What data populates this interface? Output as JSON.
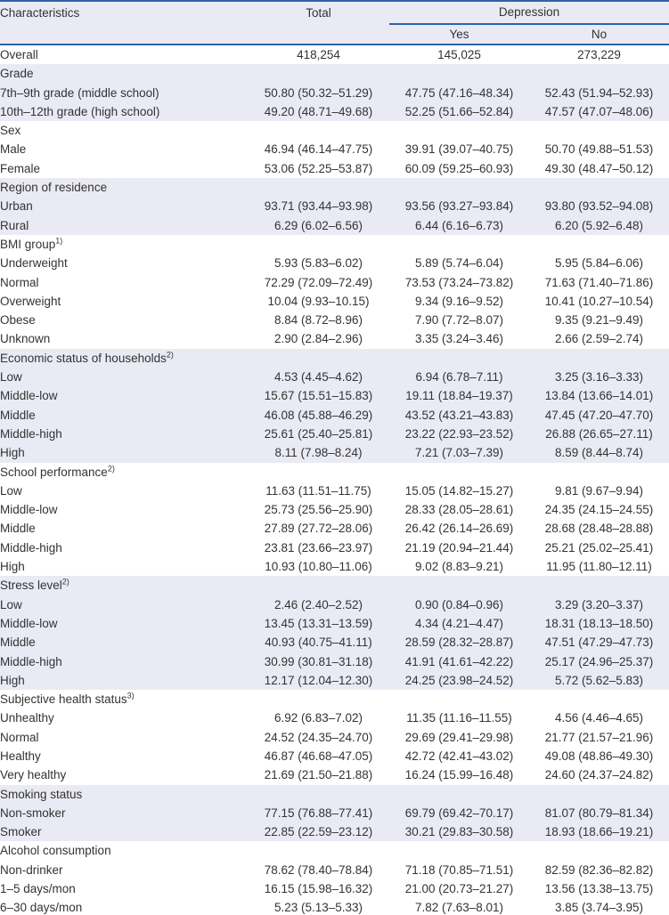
{
  "colors": {
    "rule_blue": "#2c64a7",
    "section_shade": "#e9eaf4",
    "text": "#333333"
  },
  "header": {
    "characteristics": "Characteristics",
    "total": "Total",
    "depression": "Depression",
    "yes": "Yes",
    "no": "No"
  },
  "sections": [
    {
      "label": "Overall",
      "sup": "",
      "values": {
        "total": "418,254",
        "yes": "145,025",
        "no": "273,229"
      },
      "rows": []
    },
    {
      "label": "Grade",
      "sup": "",
      "values": null,
      "rows": [
        {
          "label": "7th–9th grade (middle school)",
          "total": "50.80 (50.32–51.29)",
          "yes": "47.75 (47.16–48.34)",
          "no": "52.43 (51.94–52.93)"
        },
        {
          "label": "10th–12th grade (high school)",
          "total": "49.20 (48.71–49.68)",
          "yes": "52.25 (51.66–52.84)",
          "no": "47.57 (47.07–48.06)"
        }
      ]
    },
    {
      "label": "Sex",
      "sup": "",
      "values": null,
      "rows": [
        {
          "label": "Male",
          "total": "46.94 (46.14–47.75)",
          "yes": "39.91 (39.07–40.75)",
          "no": "50.70 (49.88–51.53)"
        },
        {
          "label": "Female",
          "total": "53.06 (52.25–53.87)",
          "yes": "60.09 (59.25–60.93)",
          "no": "49.30 (48.47–50.12)"
        }
      ]
    },
    {
      "label": "Region of residence",
      "sup": "",
      "values": null,
      "rows": [
        {
          "label": "Urban",
          "total": "93.71 (93.44–93.98)",
          "yes": "93.56 (93.27–93.84)",
          "no": "93.80 (93.52–94.08)"
        },
        {
          "label": "Rural",
          "total": "6.29 (6.02–6.56)",
          "yes": "6.44 (6.16–6.73)",
          "no": "6.20 (5.92–6.48)"
        }
      ]
    },
    {
      "label": "BMI group",
      "sup": "1)",
      "values": null,
      "rows": [
        {
          "label": "Underweight",
          "total": "5.93 (5.83–6.02)",
          "yes": "5.89 (5.74–6.04)",
          "no": "5.95 (5.84–6.06)"
        },
        {
          "label": "Normal",
          "total": "72.29 (72.09–72.49)",
          "yes": "73.53 (73.24–73.82)",
          "no": "71.63 (71.40–71.86)"
        },
        {
          "label": "Overweight",
          "total": "10.04 (9.93–10.15)",
          "yes": "9.34 (9.16–9.52)",
          "no": "10.41 (10.27–10.54)"
        },
        {
          "label": "Obese",
          "total": "8.84 (8.72–8.96)",
          "yes": "7.90 (7.72–8.07)",
          "no": "9.35 (9.21–9.49)"
        },
        {
          "label": "Unknown",
          "total": "2.90 (2.84–2.96)",
          "yes": "3.35 (3.24–3.46)",
          "no": "2.66 (2.59–2.74)"
        }
      ]
    },
    {
      "label": "Economic status of households",
      "sup": "2)",
      "values": null,
      "rows": [
        {
          "label": "Low",
          "total": "4.53 (4.45–4.62)",
          "yes": "6.94 (6.78–7.11)",
          "no": "3.25 (3.16–3.33)"
        },
        {
          "label": "Middle-low",
          "total": "15.67 (15.51–15.83)",
          "yes": "19.11 (18.84–19.37)",
          "no": "13.84 (13.66–14.01)"
        },
        {
          "label": "Middle",
          "total": "46.08 (45.88–46.29)",
          "yes": "43.52 (43.21–43.83)",
          "no": "47.45 (47.20–47.70)"
        },
        {
          "label": "Middle-high",
          "total": "25.61 (25.40–25.81)",
          "yes": "23.22 (22.93–23.52)",
          "no": "26.88 (26.65–27.11)"
        },
        {
          "label": "High",
          "total": "8.11 (7.98–8.24)",
          "yes": "7.21 (7.03–7.39)",
          "no": "8.59 (8.44–8.74)"
        }
      ]
    },
    {
      "label": "School performance",
      "sup": "2)",
      "values": null,
      "rows": [
        {
          "label": "Low",
          "total": "11.63 (11.51–11.75)",
          "yes": "15.05 (14.82–15.27)",
          "no": "9.81 (9.67–9.94)"
        },
        {
          "label": "Middle-low",
          "total": "25.73 (25.56–25.90)",
          "yes": "28.33 (28.05–28.61)",
          "no": "24.35 (24.15–24.55)"
        },
        {
          "label": "Middle",
          "total": "27.89 (27.72–28.06)",
          "yes": "26.42 (26.14–26.69)",
          "no": "28.68 (28.48–28.88)"
        },
        {
          "label": "Middle-high",
          "total": "23.81 (23.66–23.97)",
          "yes": "21.19 (20.94–21.44)",
          "no": "25.21 (25.02–25.41)"
        },
        {
          "label": "High",
          "total": "10.93 (10.80–11.06)",
          "yes": "9.02 (8.83–9.21)",
          "no": "11.95 (11.80–12.11)"
        }
      ]
    },
    {
      "label": "Stress level",
      "sup": "2)",
      "values": null,
      "rows": [
        {
          "label": "Low",
          "total": "2.46 (2.40–2.52)",
          "yes": "0.90 (0.84–0.96)",
          "no": "3.29 (3.20–3.37)"
        },
        {
          "label": "Middle-low",
          "total": "13.45 (13.31–13.59)",
          "yes": "4.34 (4.21–4.47)",
          "no": "18.31 (18.13–18.50)"
        },
        {
          "label": "Middle",
          "total": "40.93 (40.75–41.11)",
          "yes": "28.59 (28.32–28.87)",
          "no": "47.51 (47.29–47.73)"
        },
        {
          "label": "Middle-high",
          "total": "30.99 (30.81–31.18)",
          "yes": "41.91 (41.61–42.22)",
          "no": "25.17 (24.96–25.37)"
        },
        {
          "label": "High",
          "total": "12.17 (12.04–12.30)",
          "yes": "24.25 (23.98–24.52)",
          "no": "5.72 (5.62–5.83)"
        }
      ]
    },
    {
      "label": "Subjective health status",
      "sup": "3)",
      "values": null,
      "rows": [
        {
          "label": "Unhealthy",
          "total": "6.92 (6.83–7.02)",
          "yes": "11.35 (11.16–11.55)",
          "no": "4.56 (4.46–4.65)"
        },
        {
          "label": "Normal",
          "total": "24.52 (24.35–24.70)",
          "yes": "29.69 (29.41–29.98)",
          "no": "21.77 (21.57–21.96)"
        },
        {
          "label": "Healthy",
          "total": "46.87 (46.68–47.05)",
          "yes": "42.72 (42.41–43.02)",
          "no": "49.08 (48.86–49.30)"
        },
        {
          "label": "Very healthy",
          "total": "21.69 (21.50–21.88)",
          "yes": "16.24 (15.99–16.48)",
          "no": "24.60 (24.37–24.82)"
        }
      ]
    },
    {
      "label": "Smoking status",
      "sup": "",
      "values": null,
      "rows": [
        {
          "label": "Non-smoker",
          "total": "77.15 (76.88–77.41)",
          "yes": "69.79 (69.42–70.17)",
          "no": "81.07 (80.79–81.34)"
        },
        {
          "label": "Smoker",
          "total": "22.85 (22.59–23.12)",
          "yes": "30.21 (29.83–30.58)",
          "no": "18.93 (18.66–19.21)"
        }
      ]
    },
    {
      "label": "Alcohol consumption",
      "sup": "",
      "values": null,
      "rows": [
        {
          "label": "Non-drinker",
          "total": "78.62 (78.40–78.84)",
          "yes": "71.18 (70.85–71.51)",
          "no": "82.59 (82.36–82.82)"
        },
        {
          "label": "1–5 days/mon",
          "total": "16.15 (15.98–16.32)",
          "yes": "21.00 (20.73–21.27)",
          "no": "13.56 (13.38–13.75)"
        },
        {
          "label": "6–30 days/mon",
          "total": "5.23 (5.13–5.33)",
          "yes": "7.82 (7.63–8.01)",
          "no": "3.85 (3.74–3.95)"
        }
      ]
    }
  ]
}
